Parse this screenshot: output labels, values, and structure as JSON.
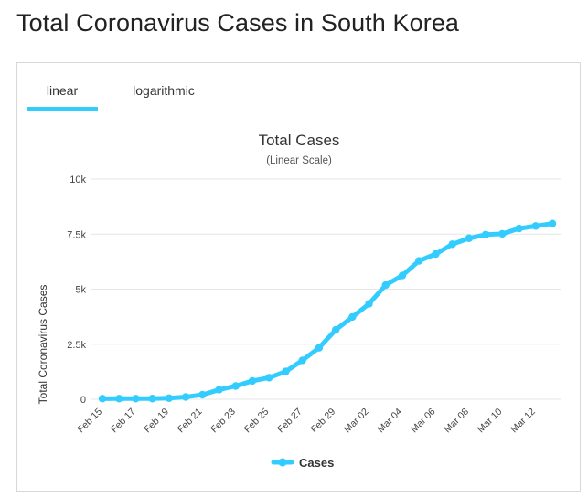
{
  "page": {
    "title": "Total Coronavirus Cases in South Korea"
  },
  "tabs": [
    {
      "label": "linear",
      "active": true
    },
    {
      "label": "logarithmic",
      "active": false
    }
  ],
  "colors": {
    "accent": "#33ccff",
    "series": "#33ccff",
    "grid": "#e6e6e6",
    "text": "#333333"
  },
  "chart_data": {
    "type": "line",
    "title": "Total Cases",
    "subtitle": "(Linear Scale)",
    "ylabel": "Total Coronavirus Cases",
    "xlabel": "",
    "ylim": [
      0,
      10000
    ],
    "yticks": [
      {
        "value": 0,
        "label": "0"
      },
      {
        "value": 2500,
        "label": "2.5k"
      },
      {
        "value": 5000,
        "label": "5k"
      },
      {
        "value": 7500,
        "label": "7.5k"
      },
      {
        "value": 10000,
        "label": "10k"
      }
    ],
    "grid": true,
    "legend": {
      "position": "bottom-center"
    },
    "categories": [
      "Feb 15",
      "Feb 16",
      "Feb 17",
      "Feb 18",
      "Feb 19",
      "Feb 20",
      "Feb 21",
      "Feb 22",
      "Feb 23",
      "Feb 24",
      "Feb 25",
      "Feb 26",
      "Feb 27",
      "Feb 28",
      "Feb 29",
      "Mar 01",
      "Mar 02",
      "Mar 03",
      "Mar 04",
      "Mar 05",
      "Mar 06",
      "Mar 07",
      "Mar 08",
      "Mar 09",
      "Mar 10",
      "Mar 11",
      "Mar 12",
      "Mar 13"
    ],
    "xtick_labels": [
      "Feb 15",
      "Feb 17",
      "Feb 19",
      "Feb 21",
      "Feb 23",
      "Feb 25",
      "Feb 27",
      "Feb 29",
      "Mar 02",
      "Mar 04",
      "Mar 06",
      "Mar 08",
      "Mar 10",
      "Mar 12"
    ],
    "series": [
      {
        "name": "Cases",
        "values": [
          28,
          29,
          30,
          31,
          51,
          104,
          204,
          433,
          602,
          833,
          977,
          1261,
          1766,
          2337,
          3150,
          3736,
          4335,
          5186,
          5621,
          6284,
          6593,
          7041,
          7313,
          7478,
          7513,
          7755,
          7869,
          7979
        ]
      }
    ]
  }
}
